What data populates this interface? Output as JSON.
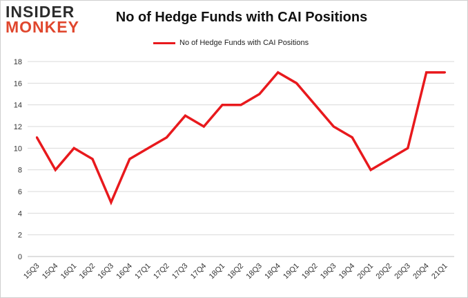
{
  "logo": {
    "line1": "INSIDER",
    "line2": "MONKEY"
  },
  "chart_data": {
    "type": "line",
    "title": "No of Hedge Funds with CAI Positions",
    "xlabel": "",
    "ylabel": "",
    "ylim": [
      0,
      18
    ],
    "yticks": [
      0,
      2,
      4,
      6,
      8,
      10,
      12,
      14,
      16,
      18
    ],
    "grid": true,
    "legend_position": "top-center",
    "categories": [
      "15Q3",
      "15Q4",
      "16Q1",
      "16Q2",
      "16Q3",
      "16Q4",
      "17Q1",
      "17Q2",
      "17Q3",
      "17Q4",
      "18Q1",
      "18Q2",
      "18Q3",
      "18Q4",
      "19Q1",
      "19Q2",
      "19Q3",
      "19Q4",
      "20Q1",
      "20Q2",
      "20Q3",
      "20Q4",
      "21Q1"
    ],
    "series": [
      {
        "name": "No of Hedge Funds with CAI Positions",
        "color": "#e8191d",
        "values": [
          11,
          8,
          10,
          9,
          5,
          9,
          10,
          11,
          13,
          12,
          14,
          14,
          15,
          17,
          16,
          14,
          12,
          11,
          8,
          9,
          10,
          17,
          17
        ]
      }
    ]
  }
}
